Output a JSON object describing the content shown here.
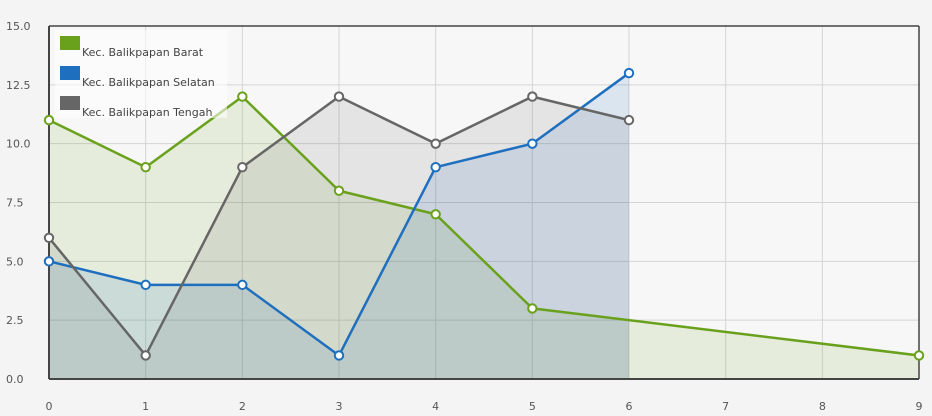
{
  "chart_data": {
    "type": "area",
    "x": [
      0,
      1,
      2,
      3,
      4,
      5,
      6,
      7,
      8,
      9
    ],
    "x_ticks": [
      "0",
      "1",
      "2",
      "3",
      "4",
      "5",
      "6",
      "7",
      "8",
      "9"
    ],
    "y_ticks": [
      "0.0",
      "2.5",
      "5.0",
      "7.5",
      "10.0",
      "12.5",
      "15.0"
    ],
    "xlim": [
      0,
      9
    ],
    "ylim": [
      0,
      15
    ],
    "grid": true,
    "legend_position": "top-left",
    "series": [
      {
        "name": "Kec. Balikpapan Barat",
        "color": "#6aa11c",
        "points": [
          [
            0,
            11
          ],
          [
            1,
            9
          ],
          [
            2,
            12
          ],
          [
            3,
            8
          ],
          [
            4,
            7
          ],
          [
            5,
            3
          ],
          [
            9,
            1
          ]
        ]
      },
      {
        "name": "Kec. Balikpapan Selatan",
        "color": "#1f6fbf",
        "points": [
          [
            0,
            5
          ],
          [
            1,
            4
          ],
          [
            2,
            4
          ],
          [
            3,
            1
          ],
          [
            4,
            9
          ],
          [
            5,
            10
          ],
          [
            6,
            13
          ]
        ]
      },
      {
        "name": "Kec. Balikpapan Tengah",
        "color": "#666666",
        "points": [
          [
            0,
            6
          ],
          [
            1,
            1
          ],
          [
            2,
            9
          ],
          [
            3,
            12
          ],
          [
            4,
            10
          ],
          [
            5,
            12
          ],
          [
            6,
            11
          ]
        ]
      }
    ]
  }
}
